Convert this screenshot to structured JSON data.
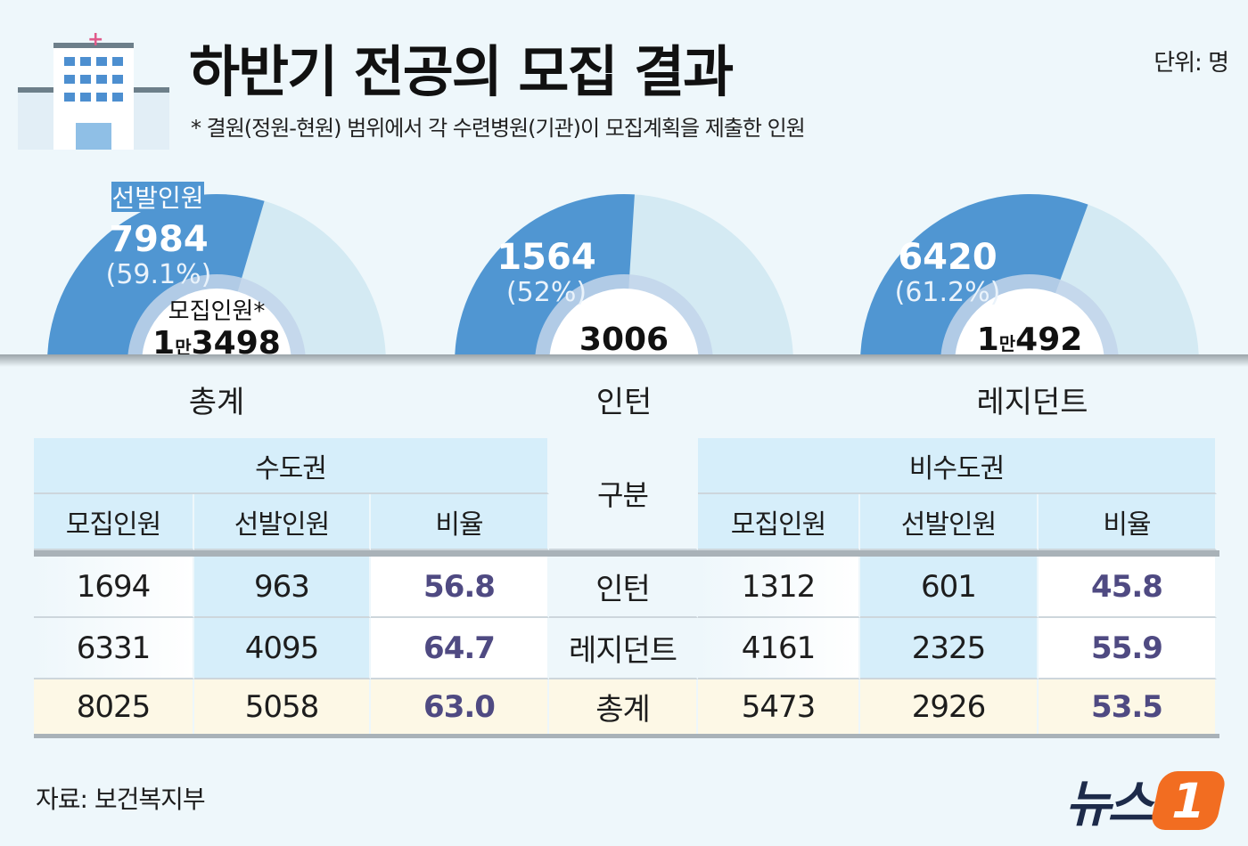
{
  "header": {
    "title": "하반기 전공의 모집 결과",
    "note": "* 결원(정원-현원) 범위에서 각 수련병원(기관)이 모집계획을 제출한 인원",
    "unit": "단위: 명"
  },
  "colors": {
    "selected": "#5096d2",
    "remaining": "#d4eaf3",
    "ring": "#c2d5ea",
    "header_bg": "#d6eefa",
    "total_bg": "#fdf8e6",
    "rate_text": "#4f4a82"
  },
  "chart_data": {
    "type": "pie",
    "subtype": "semi-donut",
    "selected_label": "선발인원",
    "recruit_label": "모집인원*",
    "charts": [
      {
        "category": "총계",
        "selected": 7984,
        "selected_text": "7984",
        "percent": 59.1,
        "percent_text": "(59.1%)",
        "recruit": 13498,
        "recruit_big": "1",
        "recruit_man": "만",
        "recruit_rest": "3498"
      },
      {
        "category": "인턴",
        "selected": 1564,
        "selected_text": "1564",
        "percent": 52,
        "percent_text": "(52%)",
        "recruit": 3006,
        "recruit_big": "3006",
        "recruit_man": "",
        "recruit_rest": ""
      },
      {
        "category": "레지던트",
        "selected": 6420,
        "selected_text": "6420",
        "percent": 61.2,
        "percent_text": "(61.2%)",
        "recruit": 10492,
        "recruit_big": "1",
        "recruit_man": "만",
        "recruit_rest": "492"
      }
    ]
  },
  "table": {
    "left_group": "수도권",
    "middle": "구분",
    "right_group": "비수도권",
    "columns": [
      "모집인원",
      "선발인원",
      "비율"
    ],
    "rows": [
      {
        "label": "인턴",
        "capital": [
          "1694",
          "963",
          "56.8"
        ],
        "noncapital": [
          "1312",
          "601",
          "45.8"
        ]
      },
      {
        "label": "레지던트",
        "capital": [
          "6331",
          "4095",
          "64.7"
        ],
        "noncapital": [
          "4161",
          "2325",
          "55.9"
        ]
      },
      {
        "label": "총계",
        "capital": [
          "8025",
          "5058",
          "63.0"
        ],
        "noncapital": [
          "5473",
          "2926",
          "53.5"
        ]
      }
    ]
  },
  "footer": {
    "source": "자료: 보건복지부",
    "logo_text": "뉴스",
    "logo_num": "1"
  }
}
